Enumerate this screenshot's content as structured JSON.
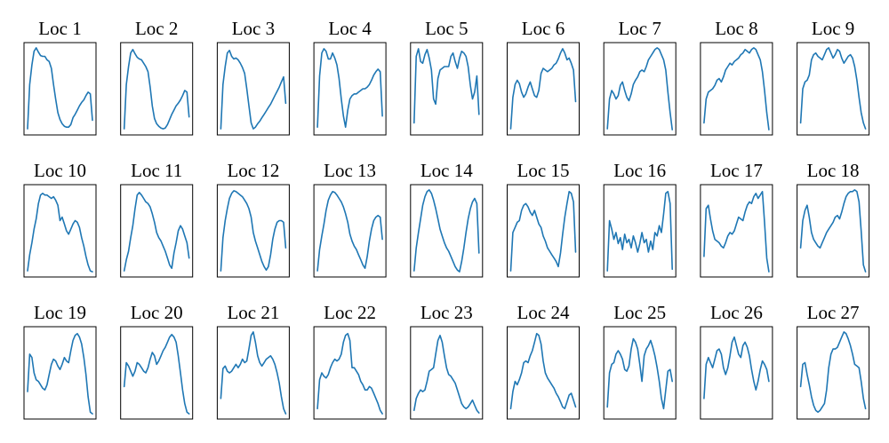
{
  "chart_data": {
    "type": "line",
    "layout": "small-multiples-3x9",
    "axes_visible": false,
    "grid": false,
    "line_color": "#1f77b4",
    "x_range": [
      0,
      1
    ],
    "y_range": [
      0,
      1
    ],
    "panels": [
      {
        "title": "Loc 1",
        "values": [
          0.03,
          0.55,
          0.78,
          0.94,
          0.98,
          0.93,
          0.89,
          0.88,
          0.88,
          0.84,
          0.82,
          0.74,
          0.55,
          0.38,
          0.22,
          0.14,
          0.09,
          0.06,
          0.05,
          0.05,
          0.08,
          0.16,
          0.2,
          0.25,
          0.3,
          0.34,
          0.37,
          0.42,
          0.46,
          0.44,
          0.13
        ]
      },
      {
        "title": "Loc 2",
        "values": [
          0.03,
          0.55,
          0.76,
          0.92,
          0.96,
          0.91,
          0.87,
          0.85,
          0.84,
          0.8,
          0.76,
          0.7,
          0.52,
          0.3,
          0.15,
          0.09,
          0.06,
          0.04,
          0.03,
          0.04,
          0.08,
          0.14,
          0.2,
          0.25,
          0.3,
          0.33,
          0.37,
          0.42,
          0.48,
          0.46,
          0.17
        ]
      },
      {
        "title": "Loc 3",
        "values": [
          0.03,
          0.55,
          0.76,
          0.92,
          0.95,
          0.88,
          0.85,
          0.86,
          0.84,
          0.8,
          0.75,
          0.68,
          0.5,
          0.3,
          0.1,
          0.03,
          0.05,
          0.09,
          0.12,
          0.16,
          0.2,
          0.24,
          0.28,
          0.32,
          0.37,
          0.42,
          0.47,
          0.52,
          0.58,
          0.64,
          0.33
        ]
      },
      {
        "title": "Loc 4",
        "values": [
          0.05,
          0.65,
          0.92,
          0.97,
          0.94,
          0.85,
          0.85,
          0.92,
          0.86,
          0.78,
          0.62,
          0.38,
          0.18,
          0.05,
          0.25,
          0.38,
          0.42,
          0.44,
          0.44,
          0.46,
          0.48,
          0.5,
          0.5,
          0.52,
          0.55,
          0.6,
          0.66,
          0.7,
          0.73,
          0.7,
          0.18
        ]
      },
      {
        "title": "Loc 5",
        "values": [
          0.1,
          0.88,
          0.97,
          0.82,
          0.8,
          0.9,
          0.96,
          0.86,
          0.72,
          0.38,
          0.32,
          0.62,
          0.72,
          0.74,
          0.76,
          0.76,
          0.76,
          0.88,
          0.92,
          0.82,
          0.74,
          0.86,
          0.94,
          0.92,
          0.88,
          0.76,
          0.54,
          0.38,
          0.46,
          0.65,
          0.2
        ]
      },
      {
        "title": "Loc 6",
        "values": [
          0.03,
          0.4,
          0.55,
          0.6,
          0.56,
          0.46,
          0.4,
          0.44,
          0.52,
          0.58,
          0.5,
          0.42,
          0.4,
          0.48,
          0.68,
          0.74,
          0.72,
          0.7,
          0.72,
          0.74,
          0.78,
          0.8,
          0.85,
          0.92,
          0.97,
          0.92,
          0.84,
          0.86,
          0.8,
          0.72,
          0.35
        ]
      },
      {
        "title": "Loc 7",
        "values": [
          0.03,
          0.38,
          0.48,
          0.44,
          0.38,
          0.42,
          0.54,
          0.58,
          0.48,
          0.4,
          0.36,
          0.44,
          0.55,
          0.6,
          0.64,
          0.7,
          0.72,
          0.7,
          0.76,
          0.84,
          0.88,
          0.92,
          0.96,
          0.98,
          0.96,
          0.9,
          0.84,
          0.72,
          0.46,
          0.22,
          0.02
        ]
      },
      {
        "title": "Loc 8",
        "values": [
          0.1,
          0.38,
          0.46,
          0.48,
          0.5,
          0.54,
          0.6,
          0.62,
          0.58,
          0.64,
          0.72,
          0.76,
          0.8,
          0.78,
          0.82,
          0.84,
          0.86,
          0.9,
          0.92,
          0.96,
          0.94,
          0.92,
          0.96,
          0.98,
          0.96,
          0.9,
          0.84,
          0.7,
          0.48,
          0.22,
          0.02
        ]
      },
      {
        "title": "Loc 9",
        "values": [
          0.1,
          0.5,
          0.58,
          0.6,
          0.66,
          0.84,
          0.9,
          0.92,
          0.88,
          0.86,
          0.84,
          0.9,
          0.96,
          0.98,
          0.92,
          0.86,
          0.9,
          0.96,
          0.94,
          0.86,
          0.8,
          0.84,
          0.88,
          0.9,
          0.86,
          0.76,
          0.6,
          0.4,
          0.22,
          0.1,
          0.03
        ]
      },
      {
        "title": "Loc 10",
        "values": [
          0.03,
          0.22,
          0.36,
          0.52,
          0.64,
          0.82,
          0.92,
          0.94,
          0.92,
          0.92,
          0.9,
          0.88,
          0.9,
          0.86,
          0.8,
          0.62,
          0.66,
          0.58,
          0.5,
          0.46,
          0.52,
          0.58,
          0.62,
          0.6,
          0.54,
          0.42,
          0.32,
          0.2,
          0.1,
          0.03,
          0.02
        ]
      },
      {
        "title": "Loc 11",
        "values": [
          0.03,
          0.16,
          0.26,
          0.42,
          0.56,
          0.76,
          0.92,
          0.95,
          0.92,
          0.88,
          0.84,
          0.82,
          0.78,
          0.7,
          0.6,
          0.48,
          0.42,
          0.38,
          0.32,
          0.26,
          0.18,
          0.1,
          0.06,
          0.24,
          0.36,
          0.5,
          0.56,
          0.52,
          0.44,
          0.36,
          0.18
        ]
      },
      {
        "title": "Loc 12",
        "values": [
          0.03,
          0.42,
          0.62,
          0.76,
          0.88,
          0.94,
          0.97,
          0.96,
          0.94,
          0.92,
          0.9,
          0.86,
          0.82,
          0.76,
          0.66,
          0.48,
          0.38,
          0.3,
          0.22,
          0.14,
          0.08,
          0.04,
          0.08,
          0.22,
          0.4,
          0.52,
          0.6,
          0.62,
          0.62,
          0.6,
          0.3
        ]
      },
      {
        "title": "Loc 13",
        "values": [
          0.03,
          0.28,
          0.44,
          0.58,
          0.74,
          0.86,
          0.92,
          0.96,
          0.95,
          0.92,
          0.88,
          0.84,
          0.78,
          0.7,
          0.6,
          0.46,
          0.38,
          0.32,
          0.28,
          0.22,
          0.16,
          0.1,
          0.06,
          0.2,
          0.38,
          0.52,
          0.62,
          0.66,
          0.68,
          0.66,
          0.4
        ]
      },
      {
        "title": "Loc 14",
        "values": [
          0.03,
          0.3,
          0.48,
          0.64,
          0.8,
          0.9,
          0.96,
          0.98,
          0.94,
          0.86,
          0.76,
          0.64,
          0.52,
          0.44,
          0.36,
          0.3,
          0.26,
          0.2,
          0.14,
          0.08,
          0.04,
          0.02,
          0.14,
          0.3,
          0.48,
          0.64,
          0.76,
          0.84,
          0.88,
          0.82,
          0.24
        ]
      },
      {
        "title": "Loc 15",
        "values": [
          0.03,
          0.48,
          0.54,
          0.6,
          0.62,
          0.74,
          0.8,
          0.82,
          0.78,
          0.72,
          0.68,
          0.74,
          0.66,
          0.58,
          0.54,
          0.44,
          0.38,
          0.3,
          0.26,
          0.22,
          0.18,
          0.14,
          0.08,
          0.24,
          0.46,
          0.66,
          0.82,
          0.96,
          0.94,
          0.84,
          0.25
        ]
      },
      {
        "title": "Loc 16",
        "values": [
          0.03,
          0.62,
          0.52,
          0.4,
          0.48,
          0.35,
          0.42,
          0.28,
          0.46,
          0.36,
          0.4,
          0.3,
          0.44,
          0.36,
          0.25,
          0.35,
          0.48,
          0.36,
          0.4,
          0.25,
          0.38,
          0.28,
          0.48,
          0.44,
          0.56,
          0.48,
          0.7,
          0.94,
          0.96,
          0.82,
          0.05
        ]
      },
      {
        "title": "Loc 17",
        "values": [
          0.2,
          0.76,
          0.8,
          0.64,
          0.5,
          0.4,
          0.38,
          0.36,
          0.32,
          0.3,
          0.36,
          0.44,
          0.48,
          0.46,
          0.5,
          0.58,
          0.66,
          0.64,
          0.62,
          0.72,
          0.8,
          0.84,
          0.82,
          0.9,
          0.94,
          0.88,
          0.92,
          0.96,
          0.6,
          0.18,
          0.02
        ]
      },
      {
        "title": "Loc 18",
        "values": [
          0.3,
          0.62,
          0.74,
          0.8,
          0.66,
          0.48,
          0.4,
          0.36,
          0.32,
          0.3,
          0.36,
          0.42,
          0.48,
          0.52,
          0.56,
          0.6,
          0.66,
          0.68,
          0.64,
          0.72,
          0.82,
          0.9,
          0.94,
          0.96,
          0.96,
          0.98,
          0.96,
          0.84,
          0.5,
          0.1,
          0.02
        ]
      },
      {
        "title": "Loc 19",
        "values": [
          0.28,
          0.72,
          0.68,
          0.5,
          0.42,
          0.4,
          0.36,
          0.32,
          0.3,
          0.36,
          0.48,
          0.6,
          0.66,
          0.64,
          0.58,
          0.54,
          0.6,
          0.68,
          0.64,
          0.62,
          0.76,
          0.88,
          0.94,
          0.96,
          0.92,
          0.84,
          0.68,
          0.48,
          0.22,
          0.04,
          0.02
        ]
      },
      {
        "title": "Loc 20",
        "values": [
          0.34,
          0.62,
          0.58,
          0.52,
          0.46,
          0.52,
          0.62,
          0.6,
          0.56,
          0.52,
          0.5,
          0.56,
          0.66,
          0.74,
          0.7,
          0.6,
          0.64,
          0.7,
          0.76,
          0.8,
          0.86,
          0.92,
          0.95,
          0.92,
          0.86,
          0.7,
          0.5,
          0.3,
          0.14,
          0.04,
          0.02
        ]
      },
      {
        "title": "Loc 21",
        "values": [
          0.2,
          0.55,
          0.58,
          0.52,
          0.5,
          0.52,
          0.56,
          0.6,
          0.56,
          0.6,
          0.66,
          0.62,
          0.64,
          0.78,
          0.94,
          0.98,
          0.86,
          0.7,
          0.62,
          0.58,
          0.62,
          0.66,
          0.68,
          0.7,
          0.66,
          0.6,
          0.5,
          0.38,
          0.22,
          0.08,
          0.02
        ]
      },
      {
        "title": "Loc 22",
        "values": [
          0.08,
          0.42,
          0.5,
          0.46,
          0.44,
          0.48,
          0.56,
          0.62,
          0.66,
          0.64,
          0.66,
          0.72,
          0.86,
          0.94,
          0.96,
          0.88,
          0.56,
          0.56,
          0.52,
          0.48,
          0.4,
          0.36,
          0.3,
          0.3,
          0.34,
          0.32,
          0.26,
          0.2,
          0.14,
          0.06,
          0.02
        ]
      },
      {
        "title": "Loc 23",
        "values": [
          0.06,
          0.2,
          0.26,
          0.3,
          0.28,
          0.3,
          0.4,
          0.52,
          0.54,
          0.56,
          0.72,
          0.88,
          0.94,
          0.86,
          0.7,
          0.56,
          0.48,
          0.46,
          0.42,
          0.38,
          0.3,
          0.22,
          0.14,
          0.1,
          0.08,
          0.1,
          0.14,
          0.18,
          0.12,
          0.06,
          0.03
        ]
      },
      {
        "title": "Loc 24",
        "values": [
          0.08,
          0.28,
          0.4,
          0.36,
          0.42,
          0.5,
          0.62,
          0.64,
          0.62,
          0.7,
          0.76,
          0.86,
          0.96,
          0.94,
          0.84,
          0.64,
          0.5,
          0.44,
          0.4,
          0.36,
          0.32,
          0.26,
          0.22,
          0.16,
          0.1,
          0.08,
          0.16,
          0.24,
          0.26,
          0.18,
          0.1
        ]
      },
      {
        "title": "Loc 25",
        "values": [
          0.1,
          0.5,
          0.6,
          0.62,
          0.72,
          0.76,
          0.72,
          0.66,
          0.54,
          0.52,
          0.58,
          0.78,
          0.9,
          0.86,
          0.78,
          0.6,
          0.4,
          0.7,
          0.78,
          0.82,
          0.88,
          0.8,
          0.7,
          0.56,
          0.4,
          0.2,
          0.08,
          0.3,
          0.52,
          0.54,
          0.4
        ]
      },
      {
        "title": "Loc 26",
        "values": [
          0.2,
          0.6,
          0.68,
          0.62,
          0.56,
          0.66,
          0.76,
          0.78,
          0.72,
          0.56,
          0.48,
          0.56,
          0.7,
          0.86,
          0.92,
          0.82,
          0.72,
          0.68,
          0.82,
          0.86,
          0.8,
          0.7,
          0.54,
          0.4,
          0.3,
          0.4,
          0.54,
          0.64,
          0.6,
          0.54,
          0.4
        ]
      },
      {
        "title": "Loc 27",
        "values": [
          0.34,
          0.6,
          0.62,
          0.48,
          0.36,
          0.22,
          0.12,
          0.06,
          0.04,
          0.06,
          0.1,
          0.14,
          0.3,
          0.56,
          0.72,
          0.78,
          0.78,
          0.8,
          0.86,
          0.92,
          0.98,
          0.96,
          0.9,
          0.82,
          0.72,
          0.6,
          0.58,
          0.56,
          0.4,
          0.2,
          0.08
        ]
      }
    ]
  }
}
